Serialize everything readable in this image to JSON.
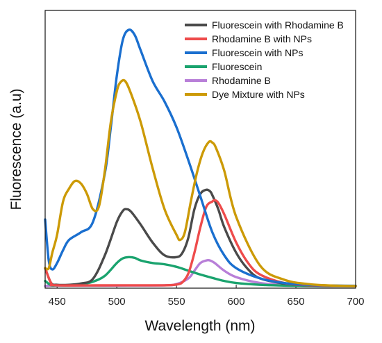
{
  "chart_data": {
    "type": "line",
    "title": "",
    "xlabel": "Wavelength (nm)",
    "ylabel": "Fluorescence (a.u)",
    "xlim": [
      440,
      700
    ],
    "ylim": [
      0,
      1
    ],
    "xticks": [
      450,
      500,
      550,
      600,
      650,
      700
    ],
    "y_tick_labels_shown": false,
    "grid": false,
    "legend_position": "top-right",
    "series": [
      {
        "name": "Fluorescein with Rhodamine B",
        "color": "#4a4a4a",
        "x": [
          440,
          445,
          450,
          460,
          470,
          480,
          490,
          500,
          505,
          508,
          512,
          520,
          530,
          540,
          550,
          555,
          560,
          565,
          570,
          575,
          578,
          580,
          585,
          590,
          600,
          610,
          620,
          640,
          660,
          680,
          700
        ],
        "y": [
          0.07,
          0.012,
          0.005,
          0.005,
          0.01,
          0.028,
          0.12,
          0.25,
          0.293,
          0.3,
          0.29,
          0.24,
          0.17,
          0.12,
          0.113,
          0.13,
          0.19,
          0.3,
          0.36,
          0.376,
          0.37,
          0.355,
          0.3,
          0.23,
          0.13,
          0.065,
          0.03,
          0.01,
          0.003,
          0.001,
          0.0
        ]
      },
      {
        "name": "Rhodamine B with NPs",
        "color": "#ee4b4b",
        "x": [
          440,
          445,
          450,
          500,
          540,
          550,
          555,
          560,
          565,
          570,
          575,
          580,
          582,
          585,
          590,
          600,
          610,
          620,
          640,
          660,
          680,
          700
        ],
        "y": [
          0.07,
          0.012,
          0.003,
          0.003,
          0.003,
          0.006,
          0.015,
          0.05,
          0.13,
          0.23,
          0.31,
          0.33,
          0.335,
          0.325,
          0.28,
          0.17,
          0.09,
          0.045,
          0.012,
          0.004,
          0.001,
          0.0
        ]
      },
      {
        "name": "Fluorescein with NPs",
        "color": "#1a6fcf",
        "x": [
          440,
          443,
          446,
          450,
          455,
          460,
          470,
          480,
          490,
          495,
          500,
          505,
          510,
          515,
          520,
          530,
          540,
          550,
          560,
          570,
          580,
          590,
          600,
          620,
          640,
          660,
          680,
          700
        ],
        "y": [
          0.26,
          0.1,
          0.065,
          0.09,
          0.14,
          0.18,
          0.21,
          0.25,
          0.44,
          0.62,
          0.82,
          0.96,
          1.0,
          0.98,
          0.92,
          0.8,
          0.72,
          0.62,
          0.49,
          0.35,
          0.21,
          0.12,
          0.07,
          0.03,
          0.012,
          0.005,
          0.002,
          0.001
        ]
      },
      {
        "name": "Fluorescein",
        "color": "#1aa36e",
        "x": [
          440,
          445,
          450,
          460,
          470,
          480,
          490,
          500,
          505,
          510,
          515,
          520,
          530,
          540,
          550,
          560,
          570,
          580,
          590,
          600,
          620,
          640,
          660,
          680,
          700
        ],
        "y": [
          0.02,
          0.003,
          0.003,
          0.003,
          0.007,
          0.017,
          0.04,
          0.09,
          0.108,
          0.113,
          0.11,
          0.1,
          0.09,
          0.085,
          0.075,
          0.06,
          0.045,
          0.032,
          0.02,
          0.012,
          0.005,
          0.002,
          0.001,
          0.0,
          0.0
        ]
      },
      {
        "name": "Rhodamine B",
        "color": "#b87fd8",
        "x": [
          440,
          450,
          500,
          540,
          550,
          560,
          565,
          570,
          575,
          578,
          582,
          590,
          600,
          620,
          640,
          660,
          680,
          700
        ],
        "y": [
          0.0,
          0.002,
          0.002,
          0.003,
          0.008,
          0.03,
          0.06,
          0.09,
          0.1,
          0.1,
          0.09,
          0.06,
          0.035,
          0.012,
          0.004,
          0.001,
          0.0,
          0.0
        ]
      },
      {
        "name": "Dye Mixture with NPs",
        "color": "#cc9a06",
        "x": [
          440,
          443,
          446,
          450,
          455,
          460,
          465,
          470,
          475,
          480,
          485,
          490,
          495,
          500,
          503,
          507,
          512,
          520,
          530,
          540,
          550,
          553,
          557,
          562,
          567,
          572,
          577,
          580,
          583,
          590,
          600,
          620,
          640,
          660,
          680,
          700
        ],
        "y": [
          0.07,
          0.07,
          0.13,
          0.2,
          0.33,
          0.38,
          0.41,
          0.4,
          0.36,
          0.3,
          0.31,
          0.45,
          0.64,
          0.76,
          0.795,
          0.8,
          0.75,
          0.64,
          0.46,
          0.3,
          0.2,
          0.18,
          0.21,
          0.33,
          0.44,
          0.52,
          0.562,
          0.56,
          0.54,
          0.45,
          0.27,
          0.08,
          0.025,
          0.008,
          0.002,
          0.0
        ]
      }
    ]
  }
}
